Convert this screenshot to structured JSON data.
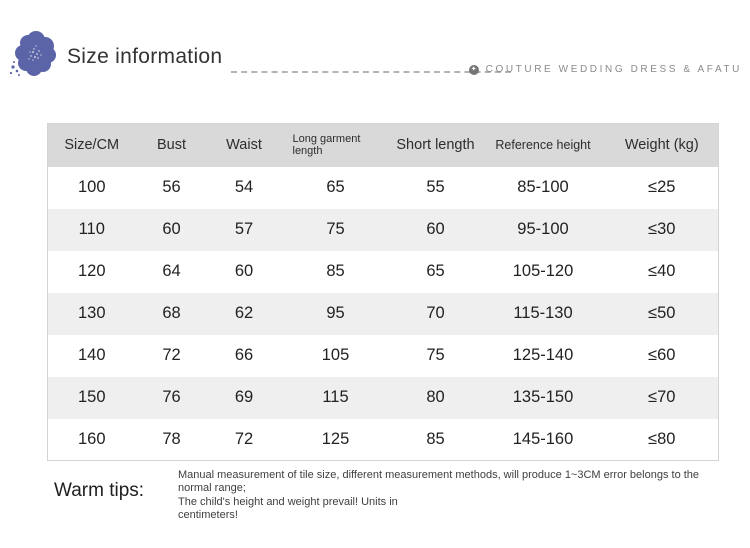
{
  "header": {
    "title": "Size information",
    "brand": "COUTURE WEDDING DRESS & AFATU",
    "accent_color": "#5b64a7",
    "brand_icon_color": "#757575"
  },
  "icons": {
    "brand_badge": "✦"
  },
  "table": {
    "columns": [
      "Size/CM",
      "Bust",
      "Waist",
      "Long garment length",
      "Short length",
      "Reference height",
      "Weight (kg)"
    ],
    "rows": [
      [
        "100",
        "56",
        "54",
        "65",
        "55",
        "85-100",
        "≤25"
      ],
      [
        "110",
        "60",
        "57",
        "75",
        "60",
        "95-100",
        "≤30"
      ],
      [
        "120",
        "64",
        "60",
        "85",
        "65",
        "105-120",
        "≤40"
      ],
      [
        "130",
        "68",
        "62",
        "95",
        "70",
        "115-130",
        "≤50"
      ],
      [
        "140",
        "72",
        "66",
        "105",
        "75",
        "125-140",
        "≤60"
      ],
      [
        "150",
        "76",
        "69",
        "115",
        "80",
        "135-150",
        "≤70"
      ],
      [
        "160",
        "78",
        "72",
        "125",
        "85",
        "145-160",
        "≤80"
      ]
    ],
    "header_bg": "#d9d9d9",
    "stripe_bg": "#efefef"
  },
  "warm_tips": {
    "label": "Warm tips:",
    "tips": [
      "Manual measurement of tile size, different measurement methods, will produce 1~3CM error belongs to the\nnormal range;",
      "The child's height and weight prevail! Units in\ncentimeters!"
    ]
  }
}
